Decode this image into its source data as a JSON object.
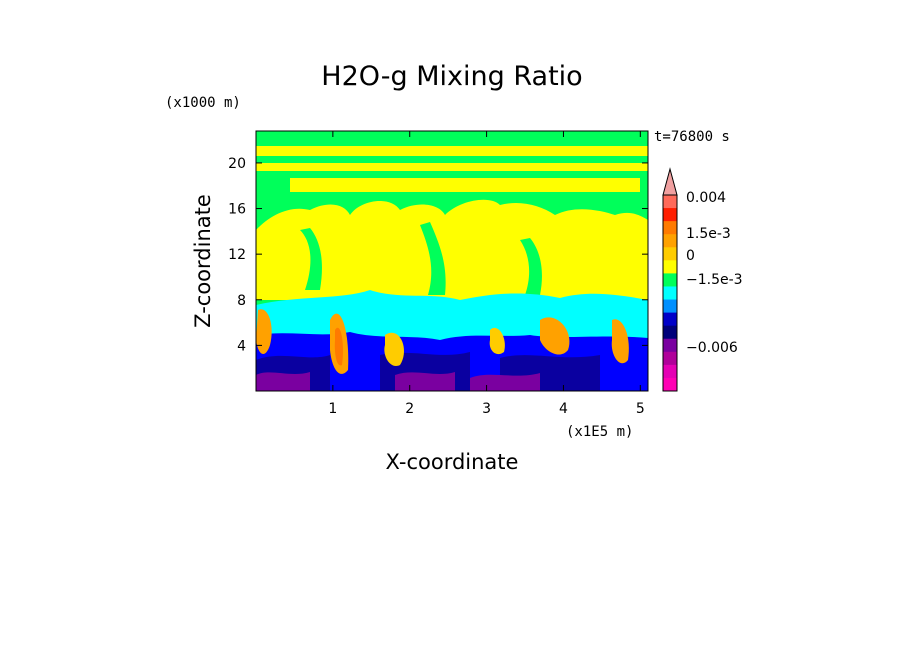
{
  "chart_data": {
    "type": "heatmap",
    "title": "H2O-g Mixing Ratio",
    "xlabel": "X-coordinate",
    "ylabel": "Z-coordinate",
    "x_unit_label": "(x1E5 m)",
    "y_unit_label": "(x1000 m)",
    "time_label": "t=76800 s",
    "xlim": [
      0,
      5.1
    ],
    "ylim": [
      0,
      22.8
    ],
    "x_ticks": [
      "1",
      "2",
      "3",
      "4",
      "5"
    ],
    "y_ticks": [
      "4",
      "8",
      "12",
      "16",
      "20"
    ],
    "colorbar": {
      "labels": [
        "0.004",
        "1.5e-3",
        "0",
        "−1.5e-3",
        "−0.006"
      ],
      "colors": [
        "#f0a0a0",
        "#ff6a5a",
        "#ff1e00",
        "#ff7a00",
        "#ffa100",
        "#ffcc00",
        "#ffff00",
        "#00ff5a",
        "#00ffff",
        "#0090ff",
        "#0000c8",
        "#00007a",
        "#7a00a0",
        "#b0009a",
        "#e400b4",
        "#ff00b4"
      ]
    },
    "colors": {
      "yellow": "#ffff00",
      "green": "#00ff5a",
      "cyan": "#00ffff",
      "blue": "#0000ff",
      "navy": "#0a00a0",
      "purple": "#7a00a0",
      "orange": "#ffa100",
      "light_orange": "#ffcc00",
      "red": "#ff7a00"
    }
  }
}
